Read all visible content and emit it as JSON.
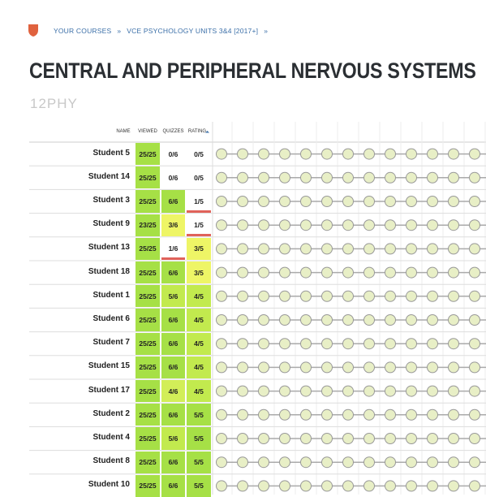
{
  "breadcrumb": {
    "items": [
      "YOUR COURSES",
      "VCE PSYCHOLOGY UNITS 3&4 [2017+]"
    ],
    "separator": "»"
  },
  "header": {
    "title": "CENTRAL AND PERIPHERAL NERVOUS SYSTEMS",
    "subtitle": "12PHY"
  },
  "table": {
    "columns": [
      "NAME",
      "VIEWED",
      "QUIZZES",
      "RATING"
    ],
    "rows": [
      [
        "Student 5",
        "25/25",
        "0/6",
        "0/5"
      ],
      [
        "Student 14",
        "25/25",
        "0/6",
        "0/5"
      ],
      [
        "Student 3",
        "25/25",
        "6/6",
        "1/5"
      ],
      [
        "Student 9",
        "23/25",
        "3/6",
        "1/5"
      ],
      [
        "Student 13",
        "25/25",
        "1/6",
        "3/5"
      ],
      [
        "Student 18",
        "25/25",
        "6/6",
        "3/5"
      ],
      [
        "Student 1",
        "25/25",
        "5/6",
        "4/5"
      ],
      [
        "Student 6",
        "25/25",
        "6/6",
        "4/5"
      ],
      [
        "Student 7",
        "25/25",
        "6/6",
        "4/5"
      ],
      [
        "Student 15",
        "25/25",
        "6/6",
        "4/5"
      ],
      [
        "Student 17",
        "25/25",
        "4/6",
        "4/5"
      ],
      [
        "Student 2",
        "25/25",
        "6/6",
        "5/5"
      ],
      [
        "Student 4",
        "25/25",
        "5/6",
        "5/5"
      ],
      [
        "Student 8",
        "25/25",
        "6/6",
        "5/5"
      ],
      [
        "Student 10",
        "25/25",
        "6/6",
        "5/5"
      ]
    ]
  }
}
